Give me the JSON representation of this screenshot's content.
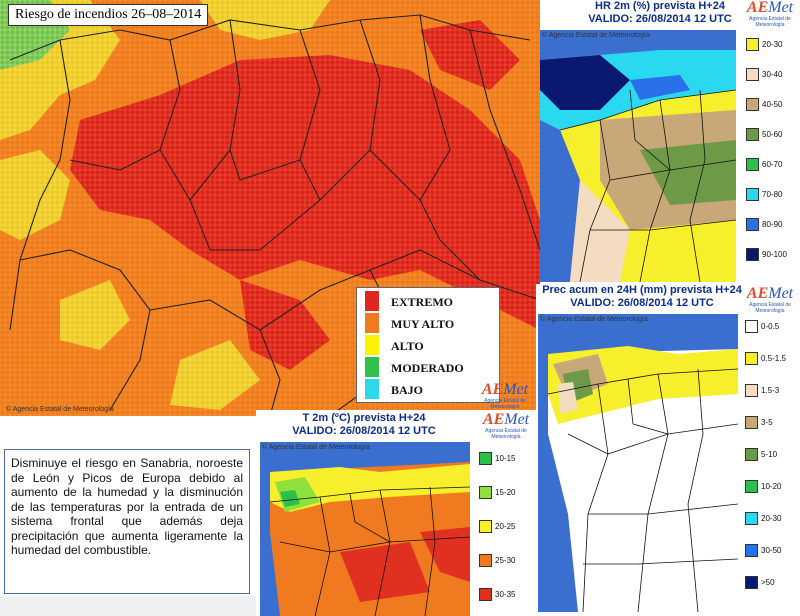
{
  "main_map": {
    "title": "Riesgo de incendios 26–08–2014",
    "credit": "© Agencia Estatal de Meteorología",
    "legend": [
      {
        "label": "EXTREMO",
        "color": "#e0261f"
      },
      {
        "label": "MUY ALTO",
        "color": "#f07a20"
      },
      {
        "label": "ALTO",
        "color": "#fff200"
      },
      {
        "label": "MODERADO",
        "color": "#2fc04a"
      },
      {
        "label": "BAJO",
        "color": "#2fd8e8"
      }
    ]
  },
  "hr_map": {
    "title_line1": "HR 2m (%) prevista H+24",
    "title_line2": "VALIDO: 26/08/2014 12 UTC",
    "credit": "© Agencia Estatal de Meteorología",
    "legend": [
      {
        "label": "20-30",
        "color": "#f7ee2c"
      },
      {
        "label": "30-40",
        "color": "#f3dcbf"
      },
      {
        "label": "40-50",
        "color": "#c8a878"
      },
      {
        "label": "50-60",
        "color": "#6e9a48"
      },
      {
        "label": "60-70",
        "color": "#2ac04a"
      },
      {
        "label": "70-80",
        "color": "#2ad8f0"
      },
      {
        "label": "80-90",
        "color": "#2a70e8"
      },
      {
        "label": "90-100",
        "color": "#0a1870"
      }
    ]
  },
  "prec_map": {
    "title_line1": "Prec acum en 24H (mm) prevista H+24",
    "title_line2": "VALIDO: 26/08/2014 12 UTC",
    "credit": "© Agencia Estatal de Meteorología",
    "legend": [
      {
        "label": "0-0.5",
        "color": "#ffffff"
      },
      {
        "label": "0.5-1.5",
        "color": "#f7ee2c"
      },
      {
        "label": "1.5-3",
        "color": "#f3dcbf"
      },
      {
        "label": "3-5",
        "color": "#c8a878"
      },
      {
        "label": "5-10",
        "color": "#6e9a48"
      },
      {
        "label": "10-20",
        "color": "#2ac04a"
      },
      {
        "label": "20-30",
        "color": "#2ad8f0"
      },
      {
        "label": "30-50",
        "color": "#2a70e8"
      },
      {
        "label": ">50",
        "color": "#0a1870"
      }
    ]
  },
  "temp_map": {
    "title_line1": "T 2m (ºC) prevista H+24",
    "title_line2": "VALIDO: 26/08/2014 12 UTC",
    "credit": "© Agencia Estatal de Meteorología",
    "legend": [
      {
        "label": "10-15",
        "color": "#2ac04a"
      },
      {
        "label": "15-20",
        "color": "#8fe03c"
      },
      {
        "label": "20-25",
        "color": "#f7ee2c"
      },
      {
        "label": "25-30",
        "color": "#f07a20"
      },
      {
        "label": "30-35",
        "color": "#e03020"
      }
    ]
  },
  "logo": {
    "word_a": "AE",
    "word_b": "Met",
    "sub": "Agencia Estatal de Meteorología"
  },
  "description": "Disminuye el riesgo en Sanabria, noroeste de León y Picos de Europa debido al aumento de la humedad y la disminución de las temperaturas por la entrada de un sistema frontal que además deja precipitación que aumenta ligeramente la humedad del combustible."
}
